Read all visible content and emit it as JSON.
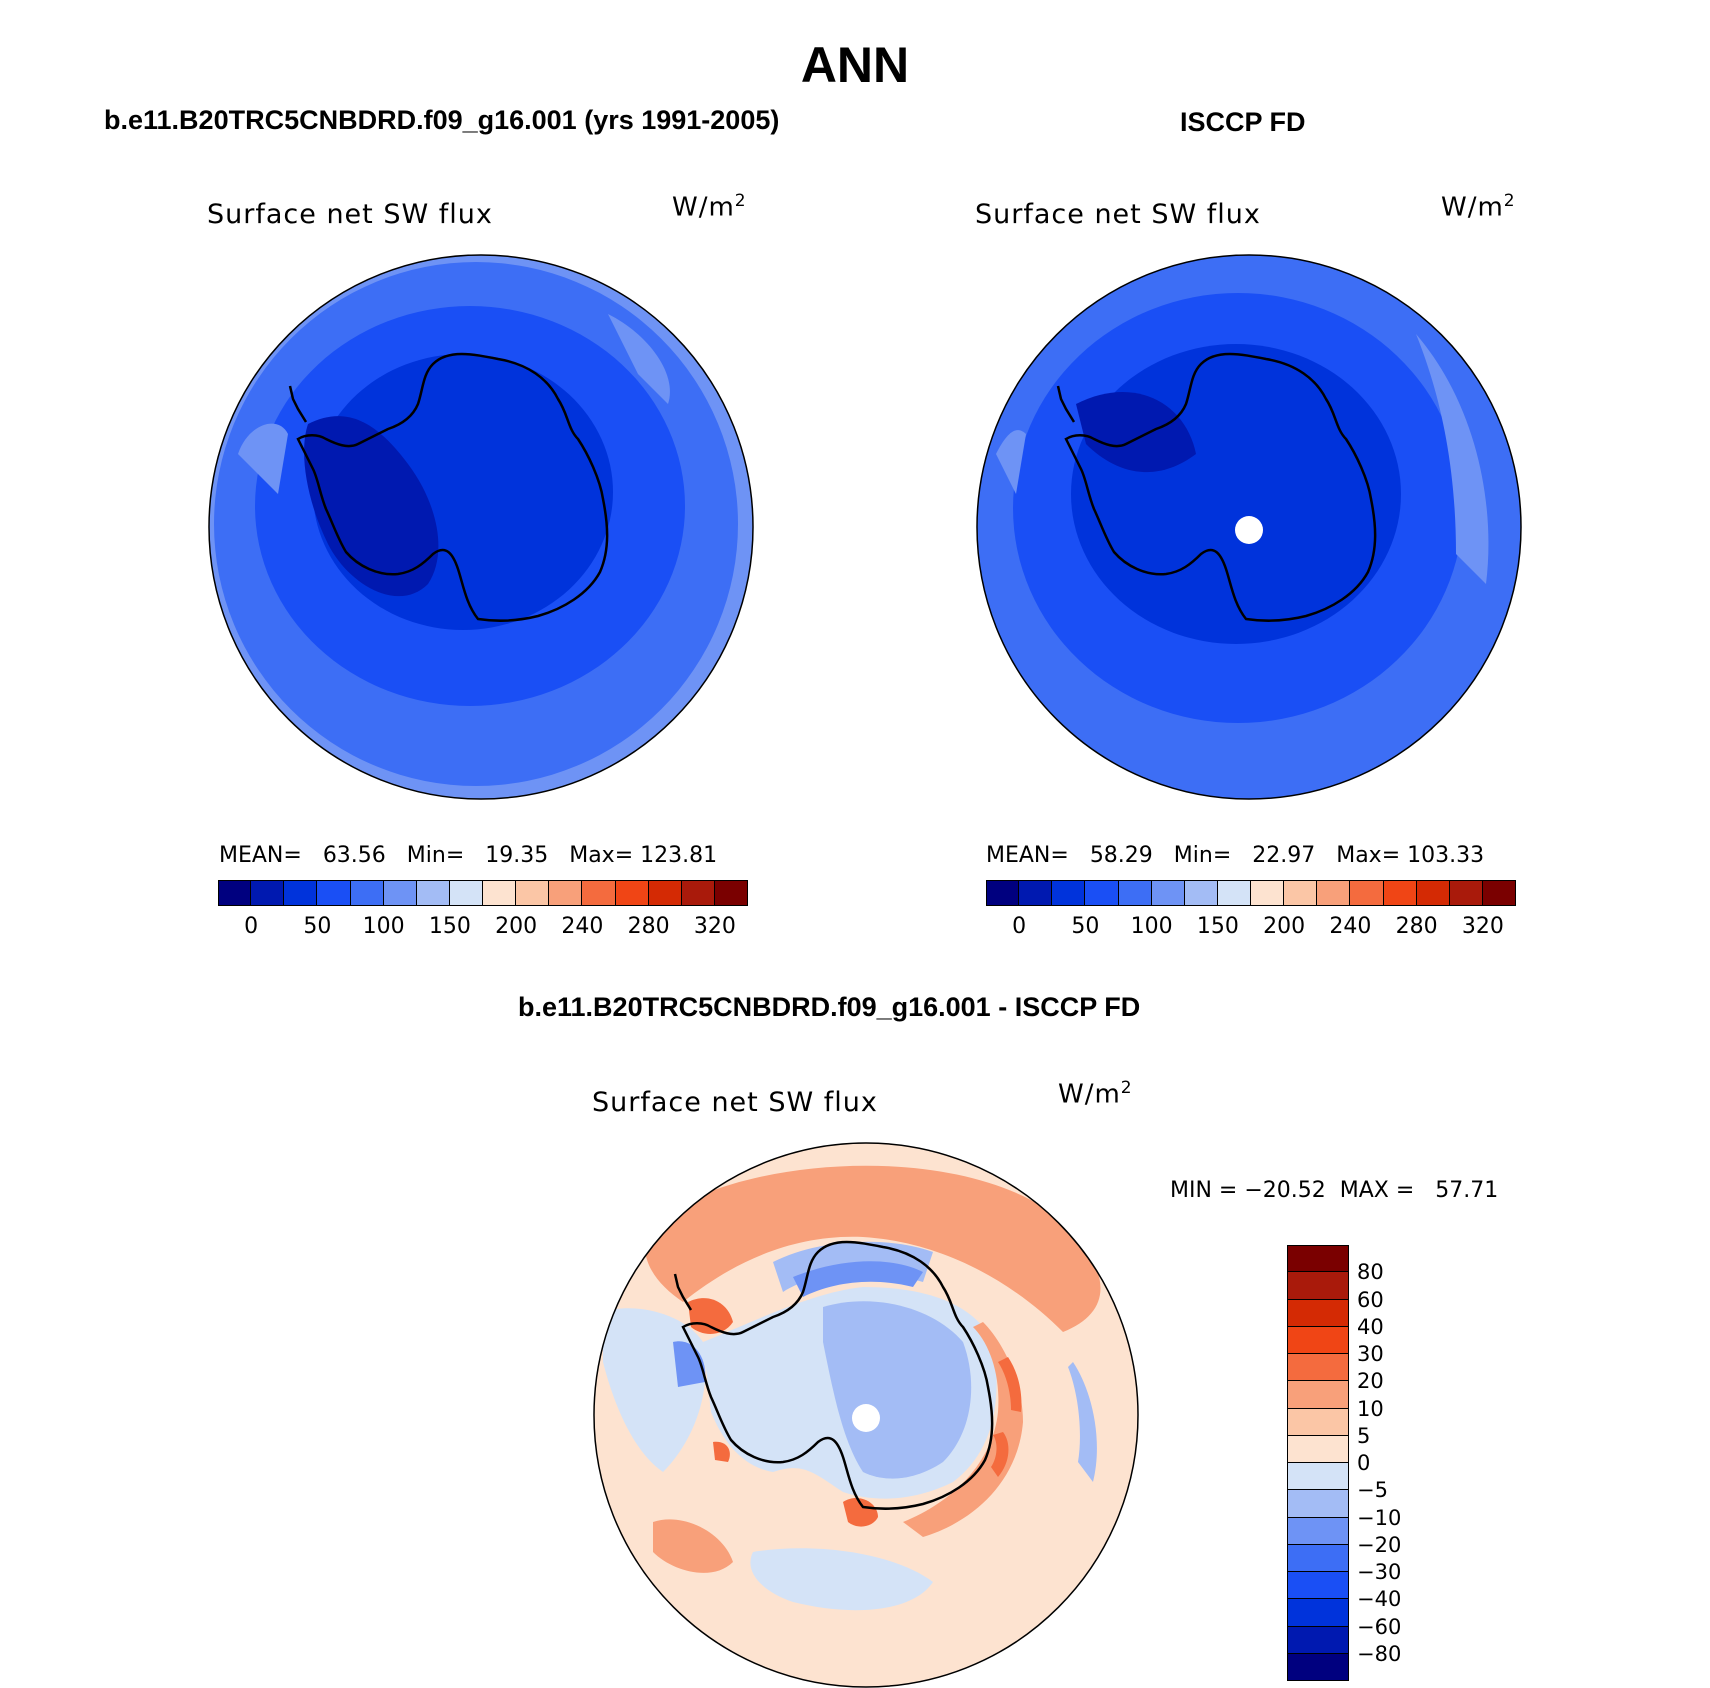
{
  "figure": {
    "title": "ANN"
  },
  "panels": [
    {
      "title": "b.e11.B20TRC5CNBDRD.f09_g16.001 (yrs 1991-2005)",
      "variable": "Surface net SW flux",
      "units": "W/m",
      "units_exp": "2",
      "stats": {
        "mean_label": "MEAN=",
        "mean": "63.56",
        "min_label": "Min=",
        "min": "19.35",
        "max_label": "Max=",
        "max": "123.81"
      }
    },
    {
      "title": "ISCCP FD",
      "variable": "Surface net SW flux",
      "units": "W/m",
      "units_exp": "2",
      "stats": {
        "mean_label": "MEAN=",
        "mean": "58.29",
        "min_label": "Min=",
        "min": "22.97",
        "max_label": "Max=",
        "max": "103.33"
      }
    },
    {
      "title": "b.e11.B20TRC5CNBDRD.f09_g16.001 - ISCCP FD",
      "variable": "Surface net SW flux",
      "units": "W/m",
      "units_exp": "2",
      "minmax": "MIN = −20.52  MAX =   57.71"
    }
  ],
  "colorbar_abs": {
    "orientation": "horizontal",
    "colors": [
      "#00007f",
      "#0019b0",
      "#0033db",
      "#1a4ff5",
      "#3d6ef5",
      "#6e93f5",
      "#a3bcf5",
      "#d4e3f7",
      "#fde3d0",
      "#fbc6a6",
      "#f8a07a",
      "#f46b3e",
      "#f04515",
      "#d42a04",
      "#a91a0b",
      "#7a0000"
    ],
    "tick_labels": [
      "0",
      "50",
      "100",
      "150",
      "200",
      "240",
      "280",
      "320"
    ]
  },
  "colorbar_diff": {
    "orientation": "vertical",
    "colors_top_to_bottom": [
      "#7a0000",
      "#a91a0b",
      "#d42a04",
      "#f04515",
      "#f46b3e",
      "#f8a07a",
      "#fbc6a6",
      "#fde3d0",
      "#d4e3f7",
      "#a3bcf5",
      "#6e93f5",
      "#3d6ef5",
      "#1a4ff5",
      "#0033db",
      "#0019b0",
      "#00007f"
    ],
    "tick_labels": [
      "80",
      "60",
      "40",
      "30",
      "20",
      "10",
      "5",
      "0",
      "−5",
      "−10",
      "−20",
      "−30",
      "−40",
      "−60",
      "−80"
    ]
  }
}
